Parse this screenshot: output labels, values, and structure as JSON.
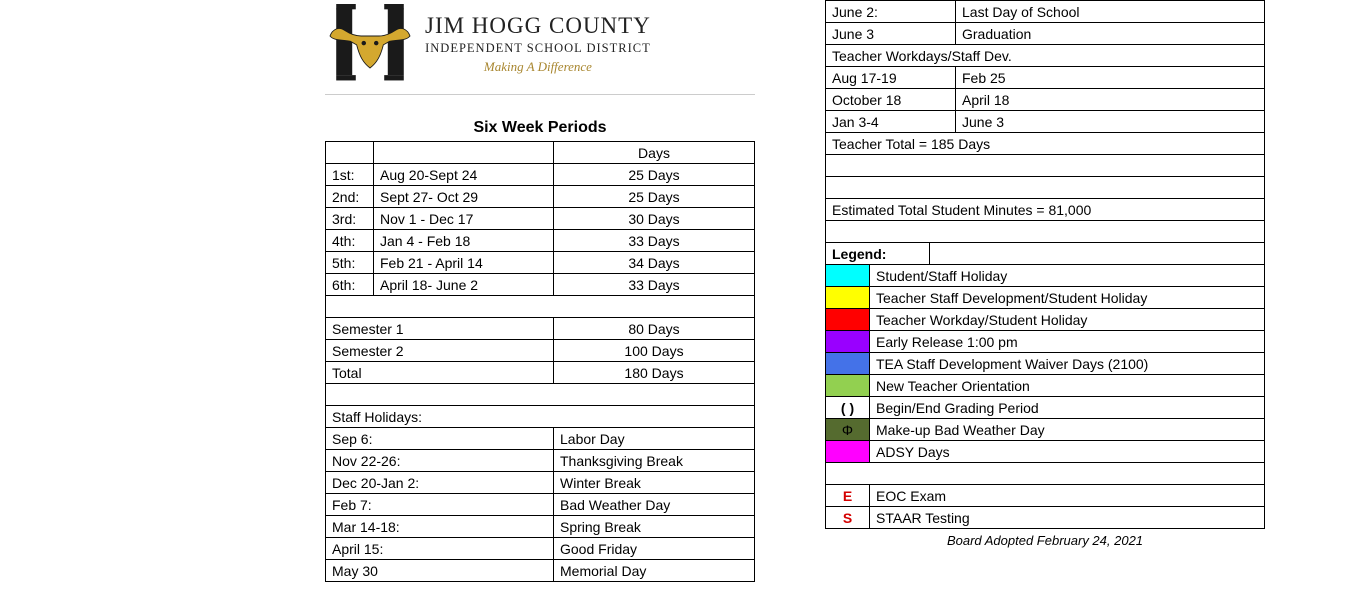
{
  "header": {
    "title": "JIM HOGG COUNTY",
    "subtitle": "INDEPENDENT SCHOOL DISTRICT",
    "motto": "Making A Difference"
  },
  "sixWeek": {
    "title": "Six Week Periods",
    "daysHeader": "Days",
    "rows": [
      {
        "ord": "1st:",
        "range": "Aug 20-Sept 24",
        "days": "25 Days"
      },
      {
        "ord": "2nd:",
        "range": "Sept 27- Oct 29",
        "days": "25 Days"
      },
      {
        "ord": "3rd:",
        "range": "Nov 1 - Dec 17",
        "days": "30 Days"
      },
      {
        "ord": "4th:",
        "range": "Jan 4 - Feb 18",
        "days": "33 Days"
      },
      {
        "ord": "5th:",
        "range": "Feb 21 - April 14",
        "days": "34 Days"
      },
      {
        "ord": "6th:",
        "range": "April 18- June 2",
        "days": "33 Days"
      }
    ],
    "semesters": [
      {
        "label": "Semester 1",
        "days": "80 Days"
      },
      {
        "label": "Semester 2",
        "days": "100 Days"
      },
      {
        "label": "Total",
        "days": "180 Days"
      }
    ]
  },
  "staffHolidays": {
    "title": "Staff Holidays:",
    "rows": [
      {
        "date": "Sep 6:",
        "name": "Labor Day"
      },
      {
        "date": "Nov 22-26:",
        "name": "Thanksgiving Break"
      },
      {
        "date": "Dec 20-Jan 2:",
        "name": "Winter Break"
      },
      {
        "date": "Feb 7:",
        "name": "Bad Weather Day"
      },
      {
        "date": "Mar 14-18:",
        "name": "Spring Break"
      },
      {
        "date": "April 15:",
        "name": "Good Friday"
      },
      {
        "date": "May 30",
        "name": "Memorial Day"
      }
    ]
  },
  "topRight": {
    "rows": [
      {
        "date": "June 2:",
        "name": "Last Day of School"
      },
      {
        "date": "June 3",
        "name": "Graduation"
      }
    ],
    "workdaysTitle": "Teacher Workdays/Staff Dev.",
    "workdays": [
      {
        "a": "Aug 17-19",
        "b": "Feb 25"
      },
      {
        "a": "October 18",
        "b": "April 18"
      },
      {
        "a": "Jan 3-4",
        "b": "June 3"
      }
    ],
    "teacherTotal": "Teacher Total = 185 Days",
    "minutes": "Estimated Total Student Minutes = 81,000"
  },
  "legend": {
    "title": "Legend:",
    "items": [
      {
        "color": "#00ffff",
        "text": "Student/Staff Holiday"
      },
      {
        "color": "#ffff00",
        "text": "Teacher Staff Development/Student Holiday"
      },
      {
        "color": "#ff0000",
        "text": "Teacher Workday/Student Holiday"
      },
      {
        "color": "#9900ff",
        "text": "Early Release 1:00 pm"
      },
      {
        "color": "#4472e8",
        "text": "TEA Staff Development Waiver Days (2100)"
      },
      {
        "color": "#92d050",
        "text": "New Teacher Orientation"
      },
      {
        "key": "( )",
        "text": "Begin/End Grading Period"
      },
      {
        "color": "#556b2f",
        "key": "Φ",
        "text": "Make-up Bad Weather Day"
      },
      {
        "color": "#ff00ff",
        "text": "ADSY Days"
      }
    ],
    "exams": [
      {
        "key": "E",
        "text": "EOC Exam"
      },
      {
        "key": "S",
        "text": "STAAR Testing"
      }
    ],
    "footnote": "Board Adopted February 24, 2021"
  },
  "colors": {
    "logo_gold": "#d4a82f",
    "logo_black": "#1a1a1a"
  }
}
